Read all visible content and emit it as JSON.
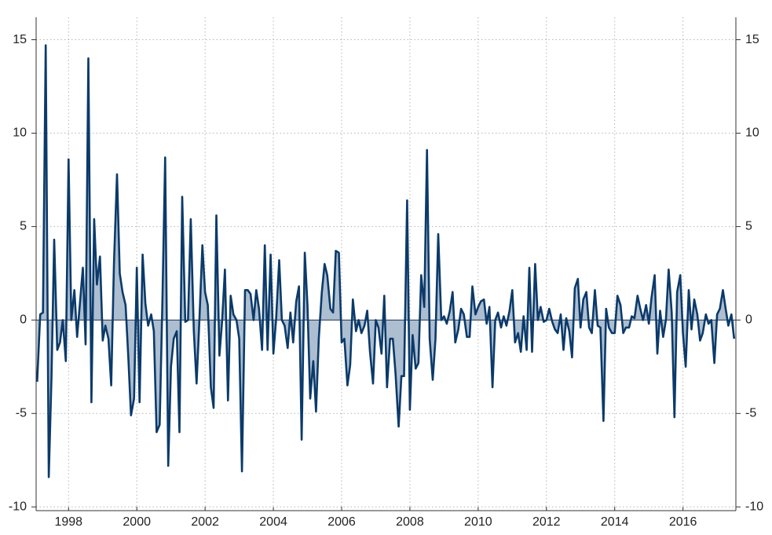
{
  "chart_data": {
    "type": "area_line",
    "x": [
      1997.08,
      1997.17,
      1997.25,
      1997.33,
      1997.42,
      1997.5,
      1997.58,
      1997.67,
      1997.75,
      1997.83,
      1997.92,
      1998,
      1998.08,
      1998.17,
      1998.25,
      1998.33,
      1998.42,
      1998.5,
      1998.58,
      1998.67,
      1998.75,
      1998.83,
      1998.92,
      1999,
      1999.08,
      1999.17,
      1999.25,
      1999.33,
      1999.42,
      1999.5,
      1999.58,
      1999.67,
      1999.75,
      1999.83,
      1999.92,
      2000,
      2000.08,
      2000.17,
      2000.25,
      2000.33,
      2000.42,
      2000.5,
      2000.58,
      2000.67,
      2000.75,
      2000.83,
      2000.92,
      2001,
      2001.08,
      2001.17,
      2001.25,
      2001.33,
      2001.42,
      2001.5,
      2001.58,
      2001.67,
      2001.75,
      2001.83,
      2001.92,
      2002,
      2002.08,
      2002.17,
      2002.25,
      2002.33,
      2002.42,
      2002.5,
      2002.58,
      2002.67,
      2002.75,
      2002.83,
      2002.92,
      2003,
      2003.08,
      2003.17,
      2003.25,
      2003.33,
      2003.42,
      2003.5,
      2003.58,
      2003.67,
      2003.75,
      2003.83,
      2003.92,
      2004,
      2004.08,
      2004.17,
      2004.25,
      2004.33,
      2004.42,
      2004.5,
      2004.58,
      2004.67,
      2004.75,
      2004.83,
      2004.92,
      2005,
      2005.08,
      2005.17,
      2005.25,
      2005.33,
      2005.42,
      2005.5,
      2005.58,
      2005.67,
      2005.75,
      2005.83,
      2005.92,
      2006,
      2006.08,
      2006.17,
      2006.25,
      2006.33,
      2006.42,
      2006.5,
      2006.58,
      2006.67,
      2006.75,
      2006.83,
      2006.92,
      2007,
      2007.08,
      2007.17,
      2007.25,
      2007.33,
      2007.42,
      2007.5,
      2007.58,
      2007.67,
      2007.75,
      2007.83,
      2007.92,
      2008,
      2008.08,
      2008.17,
      2008.25,
      2008.33,
      2008.42,
      2008.5,
      2008.58,
      2008.67,
      2008.75,
      2008.83,
      2008.92,
      2009,
      2009.08,
      2009.17,
      2009.25,
      2009.33,
      2009.42,
      2009.5,
      2009.58,
      2009.67,
      2009.75,
      2009.83,
      2009.92,
      2010,
      2010.08,
      2010.17,
      2010.25,
      2010.33,
      2010.42,
      2010.5,
      2010.58,
      2010.67,
      2010.75,
      2010.83,
      2010.92,
      2011,
      2011.08,
      2011.17,
      2011.25,
      2011.33,
      2011.42,
      2011.5,
      2011.58,
      2011.67,
      2011.75,
      2011.83,
      2011.92,
      2012,
      2012.08,
      2012.17,
      2012.25,
      2012.33,
      2012.42,
      2012.5,
      2012.58,
      2012.67,
      2012.75,
      2012.83,
      2012.92,
      2013,
      2013.08,
      2013.17,
      2013.25,
      2013.33,
      2013.42,
      2013.5,
      2013.58,
      2013.67,
      2013.75,
      2013.83,
      2013.92,
      2014,
      2014.08,
      2014.17,
      2014.25,
      2014.33,
      2014.42,
      2014.5,
      2014.58,
      2014.67,
      2014.75,
      2014.83,
      2014.92,
      2015,
      2015.08,
      2015.17,
      2015.25,
      2015.33,
      2015.42,
      2015.5,
      2015.58,
      2015.67,
      2015.75,
      2015.83,
      2015.92,
      2016,
      2016.08,
      2016.17,
      2016.25,
      2016.33,
      2016.42,
      2016.5,
      2016.58,
      2016.67,
      2016.75,
      2016.83,
      2016.92,
      2017,
      2017.08,
      2017.17,
      2017.25,
      2017.33,
      2017.42,
      2017.5
    ],
    "values": [
      -3.3,
      0.3,
      0.4,
      14.7,
      -8.4,
      -3,
      4.3,
      -1.6,
      -1.2,
      0,
      -2.2,
      8.6,
      0,
      1.6,
      -0.9,
      0.8,
      2.8,
      -1.3,
      14,
      -4.4,
      5.4,
      1.9,
      3.4,
      -1.1,
      -0.3,
      -1,
      -3.5,
      3,
      7.8,
      2.5,
      1.5,
      0.8,
      -2,
      -5.1,
      -4.2,
      2.8,
      -4.4,
      3.5,
      0.9,
      -0.3,
      0.3,
      -0.6,
      -6,
      -5.6,
      1,
      8.7,
      -7.8,
      -2.5,
      -1,
      -0.6,
      -6,
      6.6,
      -0.1,
      0,
      5.4,
      -0.6,
      -3.4,
      -0.1,
      4,
      1.5,
      0.8,
      -3.6,
      -4.7,
      5.6,
      -1.9,
      0,
      2.7,
      -4.3,
      1.3,
      0.3,
      0,
      -1,
      -8.1,
      1.6,
      1.6,
      1.4,
      0,
      1.6,
      0.6,
      -1.6,
      4,
      -1.6,
      3.5,
      -1.8,
      0,
      3.2,
      0,
      -0.3,
      -1.5,
      0.4,
      -1.2,
      1,
      1.8,
      -6.4,
      3.6,
      0.8,
      -4.2,
      -2.2,
      -4.9,
      -1,
      1.5,
      3,
      2.4,
      0.6,
      0.4,
      3.7,
      3.6,
      -1.2,
      -1,
      -3.5,
      -2.4,
      1.1,
      -0.6,
      0,
      -0.7,
      -0.3,
      0.5,
      -1.7,
      -3.4,
      0,
      -0.4,
      -1.8,
      1.3,
      -3.6,
      -1,
      -1,
      -2.9,
      -5.7,
      -3,
      -3,
      6.4,
      -4.8,
      -0.8,
      -2.6,
      -2.3,
      2.4,
      0.7,
      9.1,
      -1,
      -3.2,
      -1,
      4.6,
      0,
      0.2,
      -0.2,
      0.5,
      1.5,
      -1.2,
      -0.5,
      0.6,
      0.3,
      -0.9,
      -0.9,
      1.8,
      0.3,
      0.7,
      1,
      1.1,
      -0.2,
      0.7,
      -3.6,
      0,
      0.4,
      -0.4,
      0.2,
      -0.3,
      0.5,
      1.6,
      -1.2,
      -0.7,
      -1.7,
      0.2,
      -1.6,
      2.8,
      -1.7,
      3,
      0,
      0.7,
      -0.1,
      0,
      0.6,
      -0.1,
      -0.5,
      -0.7,
      0.3,
      -1.6,
      0.1,
      -0.6,
      -2,
      1.7,
      2.2,
      -0.4,
      1.1,
      1.5,
      -0.4,
      -0.7,
      1.6,
      -0.3,
      -0.4,
      -5.4,
      0.6,
      -0.4,
      -0.7,
      -0.7,
      1.3,
      0.8,
      -0.7,
      -0.4,
      -0.4,
      0.2,
      0.1,
      1.3,
      0.6,
      0,
      0.8,
      -0.2,
      1.2,
      2.4,
      -1.8,
      0.5,
      -0.9,
      0,
      2.7,
      0.4,
      -5.2,
      1.5,
      2.4,
      -0.7,
      -2.5,
      1.6,
      -0.5,
      1.1,
      0.3,
      -1.1,
      -0.7,
      0.3,
      -0.2,
      0,
      -2.3,
      0.3,
      0.6,
      1.6,
      0.6,
      -0.3,
      0.3,
      -1
    ],
    "color": "#0b3a6a",
    "fill_color": "#9fb3c8",
    "xlim": [
      1997.05,
      2017.55
    ],
    "xticks": [
      1998,
      2000,
      2002,
      2004,
      2006,
      2008,
      2010,
      2012,
      2014,
      2016
    ],
    "ylim": [
      -10.2,
      16.2
    ],
    "yticks": [
      -10,
      -5,
      0,
      5,
      10,
      15
    ],
    "y2lim": [
      -10.2,
      16.2
    ],
    "y2ticks": [
      -10,
      -5,
      0,
      5,
      10,
      15
    ],
    "grid": true
  }
}
